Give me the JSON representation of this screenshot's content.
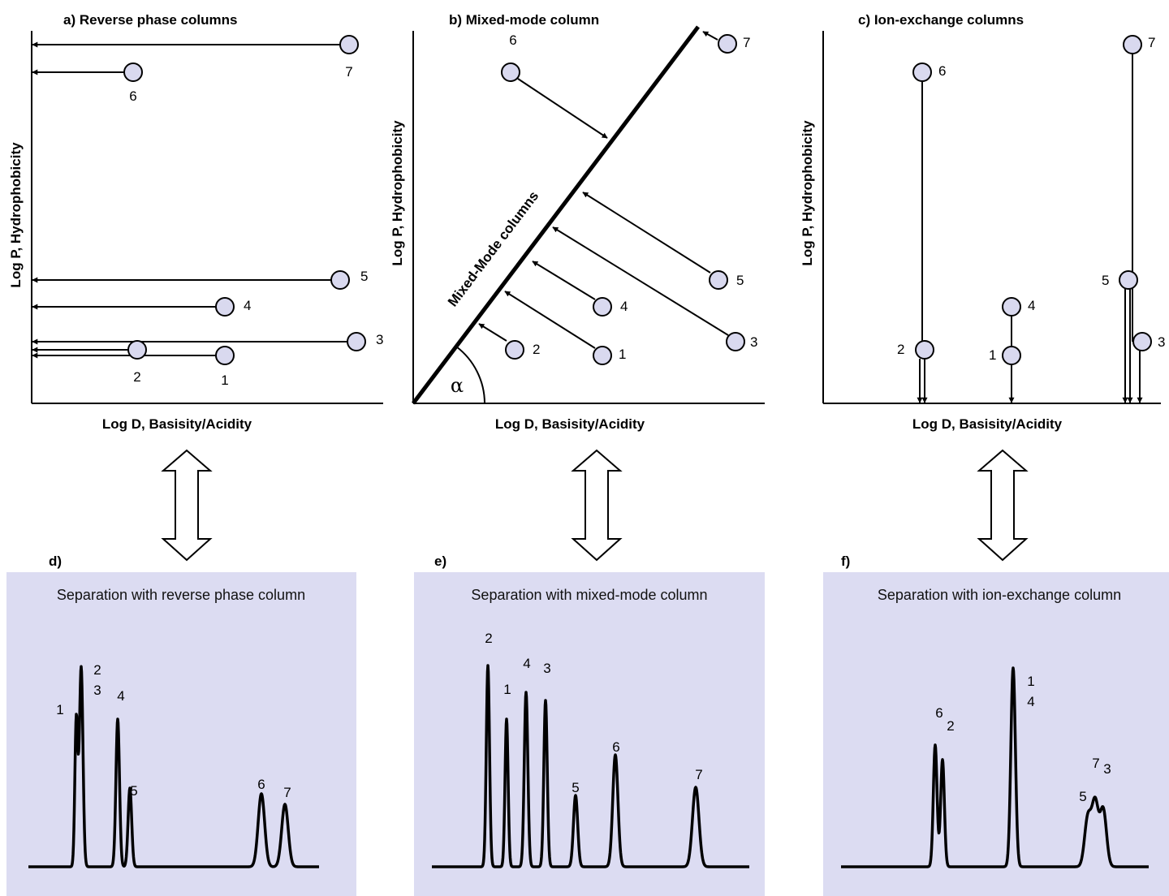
{
  "diagrams": {
    "a": {
      "title": "a)    Reverse phase columns",
      "ylabel": "Log P, Hydrophobicity",
      "xlabel": "Log D, Basisity/Acidity",
      "points": [
        "1",
        "2",
        "3",
        "4",
        "5",
        "6",
        "7"
      ]
    },
    "b": {
      "title": "b)     Mixed-mode column",
      "ylabel": "Log P, Hydrophobicity",
      "xlabel": "Log D, Basisity/Acidity",
      "line_label": "Mixed-Mode columns",
      "angle_label": "α",
      "points": [
        "1",
        "2",
        "3",
        "4",
        "5",
        "6",
        "7"
      ]
    },
    "c": {
      "title": "c)    Ion-exchange columns",
      "ylabel": "Log P, Hydrophobicity",
      "xlabel": "Log D, Basisity/Acidity",
      "points": [
        "1",
        "2",
        "3",
        "4",
        "5",
        "6",
        "7"
      ]
    }
  },
  "separations": {
    "d": {
      "tag": "d)",
      "title": "Separation with reverse phase column",
      "peaks": [
        "1",
        "2",
        "3",
        "4",
        "5",
        "6",
        "7"
      ]
    },
    "e": {
      "tag": "e)",
      "title": "Separation with mixed-mode column",
      "peaks": [
        "2",
        "1",
        "4",
        "3",
        "5",
        "6",
        "7"
      ]
    },
    "f": {
      "tag": "f)",
      "title": "Separation with ion-exchange column",
      "peaks": [
        "6",
        "2",
        "1",
        "4",
        "7",
        "3",
        "5"
      ]
    }
  }
}
